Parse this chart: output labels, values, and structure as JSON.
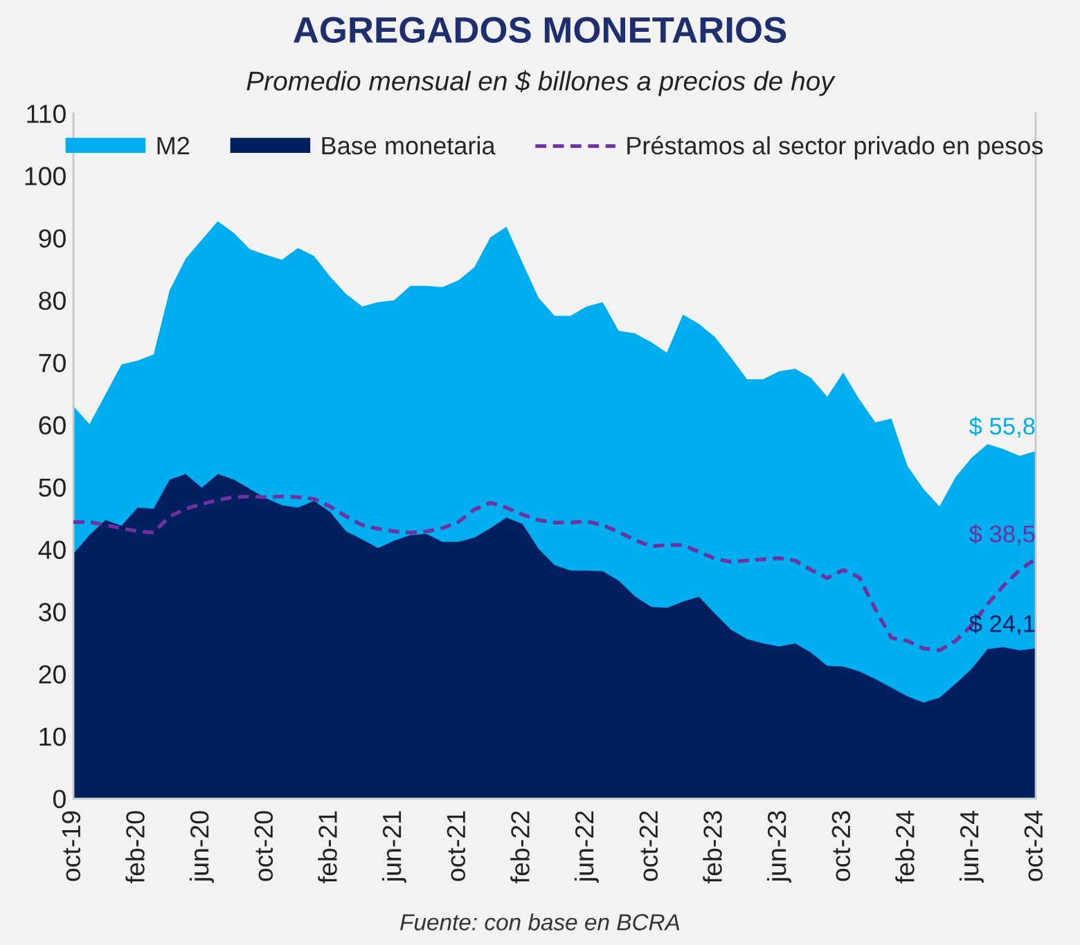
{
  "chart_data": {
    "type": "area",
    "title": "AGREGADOS MONETARIOS",
    "subtitle": "Promedio mensual en $ billones a precios de hoy",
    "categories": [
      "oct-19",
      null,
      null,
      null,
      "feb-20",
      null,
      null,
      null,
      "jun-20",
      null,
      null,
      null,
      "oct-20",
      null,
      null,
      null,
      "feb-21",
      null,
      null,
      null,
      "jun-21",
      null,
      null,
      null,
      "oct-21",
      null,
      null,
      null,
      "feb-22",
      null,
      null,
      null,
      "jun-22",
      null,
      null,
      null,
      "oct-22",
      null,
      null,
      null,
      "feb-23",
      null,
      null,
      null,
      "jun-23",
      null,
      null,
      null,
      "oct-23",
      null,
      null,
      null,
      "feb-24",
      null,
      null,
      null,
      "jun-24",
      null,
      null,
      null,
      "oct-24"
    ],
    "series": [
      {
        "name": "M2",
        "color": "#00adee",
        "values": [
          63.0,
          60.1,
          64.9,
          69.7,
          70.3,
          71.3,
          81.6,
          86.7,
          89.7,
          92.7,
          90.8,
          88.2,
          87.3,
          86.5,
          88.4,
          87.1,
          83.8,
          81.0,
          79.0,
          79.7,
          80.0,
          82.3,
          82.3,
          82.1,
          83.2,
          85.3,
          90.1,
          91.8,
          86.0,
          80.4,
          77.5,
          77.5,
          79.0,
          79.7,
          75.1,
          74.7,
          73.3,
          71.6,
          77.7,
          76.2,
          74.1,
          70.8,
          67.3,
          67.3,
          68.6,
          69.0,
          67.5,
          64.5,
          68.4,
          64.1,
          60.4,
          61.0,
          53.4,
          49.7,
          46.9,
          51.6,
          54.7,
          56.9,
          56.1,
          55.0,
          55.8
        ],
        "value_labels": [
          null,
          null,
          null,
          null,
          null,
          null,
          null,
          null,
          null,
          null,
          null,
          null,
          null,
          null,
          null,
          null,
          null,
          null,
          null,
          null,
          null,
          null,
          null,
          null,
          null,
          null,
          null,
          null,
          null,
          null,
          null,
          null,
          null,
          null,
          null,
          null,
          null,
          null,
          null,
          null,
          null,
          null,
          null,
          null,
          null,
          null,
          null,
          null,
          null,
          null,
          null,
          null,
          null,
          null,
          null,
          null,
          null,
          null,
          null,
          null,
          "$ 55,8"
        ]
      },
      {
        "name": "Base monetaria",
        "color": "#001f5f",
        "values": [
          39.3,
          42.3,
          44.7,
          43.8,
          46.7,
          46.5,
          51.2,
          52.1,
          49.9,
          52.1,
          51.2,
          49.7,
          48.2,
          47.1,
          46.7,
          47.8,
          46.0,
          42.9,
          41.6,
          40.2,
          41.4,
          42.3,
          42.5,
          41.2,
          41.2,
          41.9,
          43.4,
          45.1,
          44.1,
          40.1,
          37.5,
          36.6,
          36.6,
          36.5,
          35.0,
          32.5,
          30.8,
          30.6,
          31.6,
          32.4,
          29.7,
          27.1,
          25.6,
          24.9,
          24.4,
          24.9,
          23.4,
          21.3,
          21.2,
          20.4,
          19.2,
          17.8,
          16.4,
          15.4,
          16.2,
          18.4,
          20.8,
          24.0,
          24.3,
          23.8,
          24.1
        ],
        "value_labels": [
          null,
          null,
          null,
          null,
          null,
          null,
          null,
          null,
          null,
          null,
          null,
          null,
          null,
          null,
          null,
          null,
          null,
          null,
          null,
          null,
          null,
          null,
          null,
          null,
          null,
          null,
          null,
          null,
          null,
          null,
          null,
          null,
          null,
          null,
          null,
          null,
          null,
          null,
          null,
          null,
          null,
          null,
          null,
          null,
          null,
          null,
          null,
          null,
          null,
          null,
          null,
          null,
          null,
          null,
          null,
          null,
          null,
          null,
          null,
          null,
          "$ 24,1"
        ]
      },
      {
        "name": "Préstamos al sector privado en pesos",
        "type": "line",
        "line_style": "dashed",
        "color": "#7030a0",
        "values": [
          44.4,
          44.4,
          43.9,
          43.4,
          42.9,
          42.7,
          45.3,
          46.5,
          47.3,
          47.9,
          48.4,
          48.5,
          48.4,
          48.5,
          48.4,
          48.1,
          46.9,
          45.3,
          43.9,
          43.3,
          42.9,
          42.7,
          42.9,
          43.4,
          44.4,
          46.4,
          47.5,
          46.7,
          45.6,
          44.7,
          44.3,
          44.3,
          44.5,
          43.9,
          42.8,
          41.5,
          40.5,
          40.7,
          40.7,
          39.6,
          38.5,
          38.0,
          38.2,
          38.4,
          38.6,
          38.2,
          36.7,
          35.4,
          36.7,
          35.5,
          30.4,
          25.8,
          25.3,
          24.1,
          23.8,
          25.3,
          27.8,
          31.2,
          34.2,
          36.7,
          38.5
        ],
        "value_labels": [
          null,
          null,
          null,
          null,
          null,
          null,
          null,
          null,
          null,
          null,
          null,
          null,
          null,
          null,
          null,
          null,
          null,
          null,
          null,
          null,
          null,
          null,
          null,
          null,
          null,
          null,
          null,
          null,
          null,
          null,
          null,
          null,
          null,
          null,
          null,
          null,
          null,
          null,
          null,
          null,
          null,
          null,
          null,
          null,
          null,
          null,
          null,
          null,
          null,
          null,
          null,
          null,
          null,
          null,
          null,
          null,
          null,
          null,
          null,
          null,
          "$ 38,5"
        ]
      }
    ],
    "ylim": [
      0,
      110
    ],
    "yticks": [
      0,
      10,
      20,
      30,
      40,
      50,
      60,
      70,
      80,
      90,
      100,
      110
    ],
    "legend": "top",
    "annotations": [
      "Fuente: con base en BCRA"
    ]
  }
}
